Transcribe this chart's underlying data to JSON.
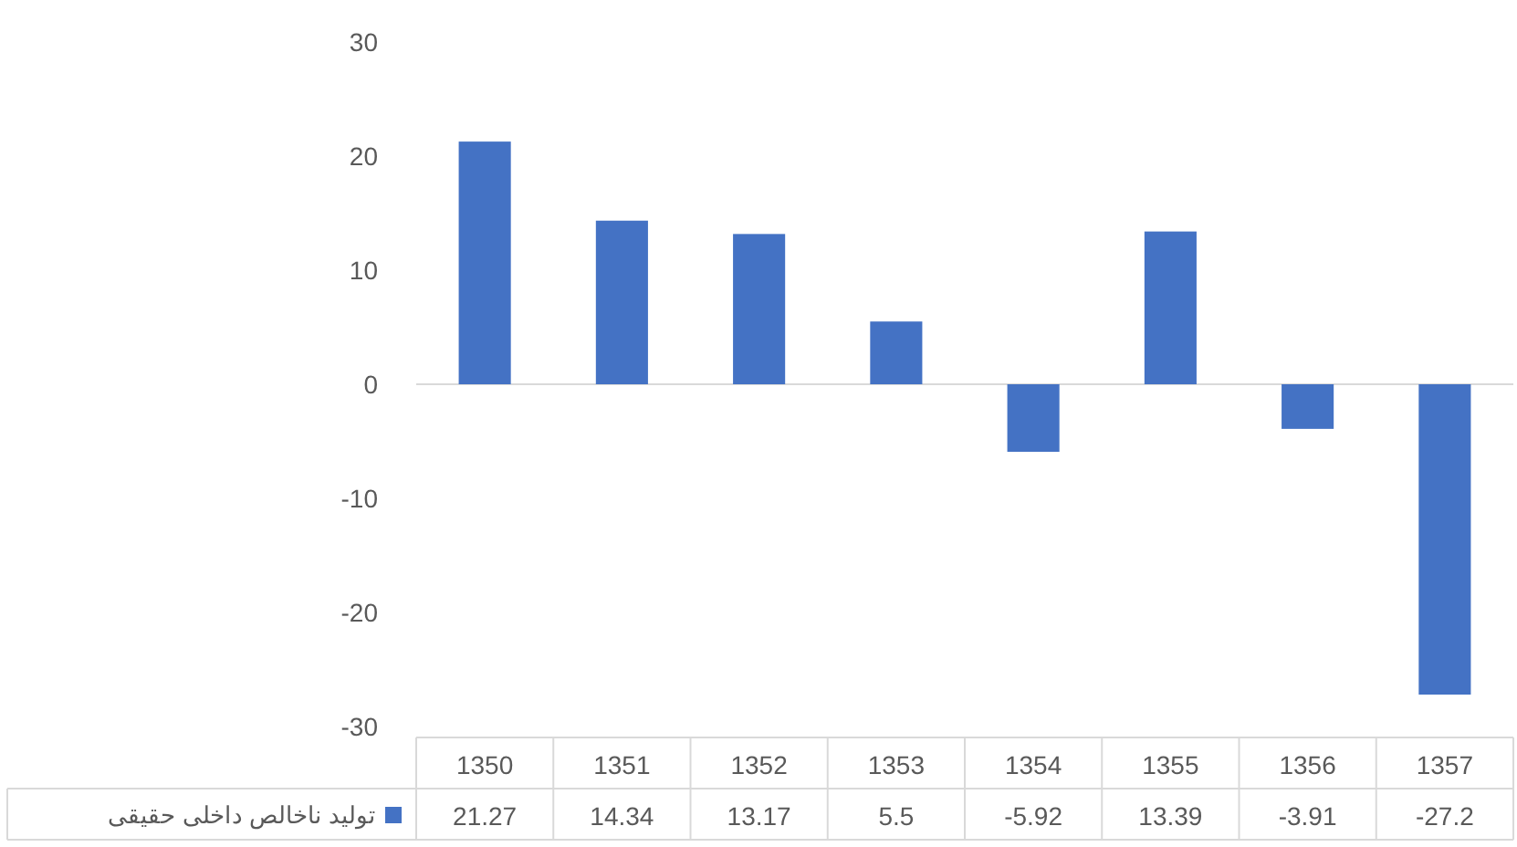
{
  "chart_data": {
    "type": "bar",
    "categories": [
      "1350",
      "1351",
      "1352",
      "1353",
      "1354",
      "1355",
      "1356",
      "1357"
    ],
    "series": [
      {
        "name": "تولید ناخالص داخلی حقیقی",
        "color": "#4472c4",
        "values": [
          21.27,
          14.34,
          13.17,
          5.5,
          -5.92,
          13.39,
          -3.91,
          -27.2
        ]
      }
    ],
    "ylim": [
      -30,
      30
    ],
    "yticks": [
      -30,
      -20,
      -10,
      0,
      10,
      20,
      30
    ],
    "data_labels": true,
    "legend": "bottom"
  }
}
